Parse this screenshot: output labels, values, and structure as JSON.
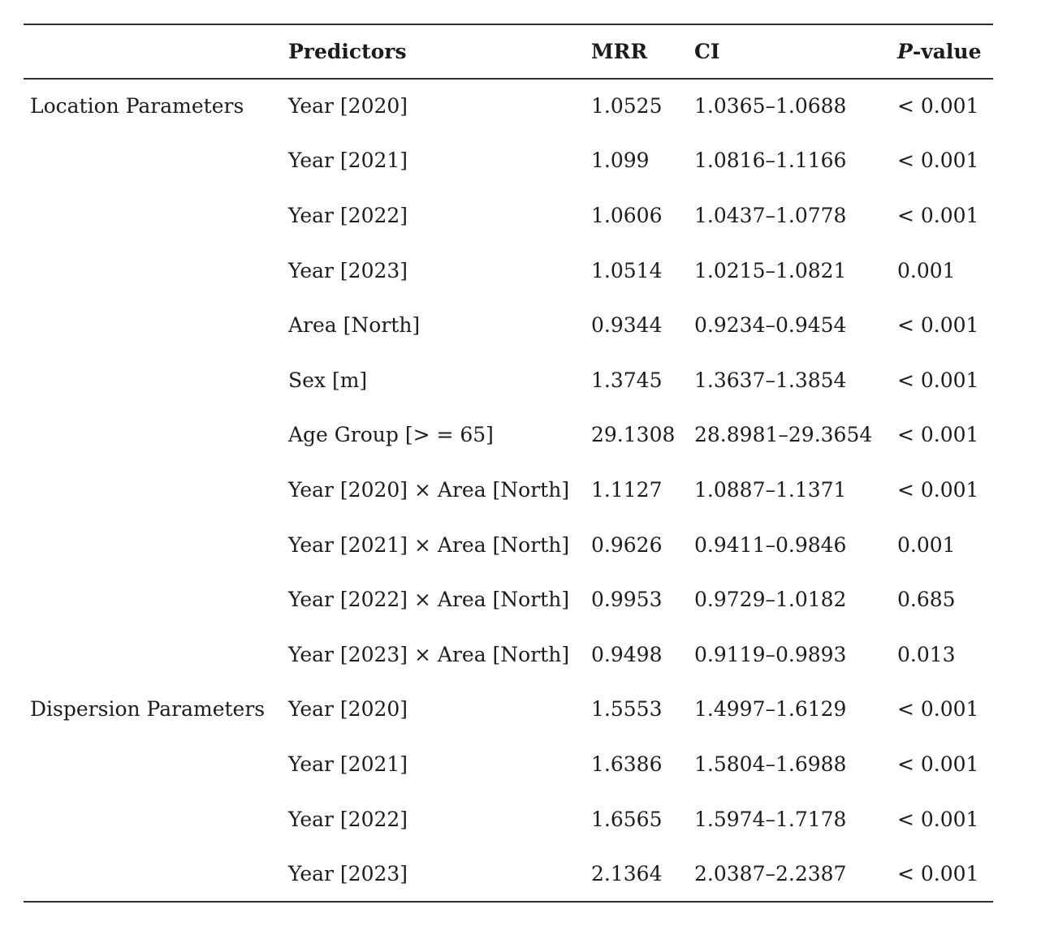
{
  "page": {
    "background": "#ffffff",
    "text_color": "#1c1c1c",
    "rule_color": "#2f2f2f"
  },
  "table": {
    "header": {
      "group": "",
      "predictors": "Predictors",
      "mrr": "MRR",
      "ci": "CI",
      "p_italic": "P",
      "p_rest": "-value"
    },
    "rows": [
      {
        "group": "Location Parameters",
        "predictor": "Year [2020]",
        "mrr": "1.0525",
        "ci": "1.0365–1.0688",
        "p": "< 0.001"
      },
      {
        "group": "",
        "predictor": "Year [2021]",
        "mrr": "1.099",
        "ci": "1.0816–1.1166",
        "p": "< 0.001"
      },
      {
        "group": "",
        "predictor": "Year [2022]",
        "mrr": "1.0606",
        "ci": "1.0437–1.0778",
        "p": "< 0.001"
      },
      {
        "group": "",
        "predictor": "Year [2023]",
        "mrr": "1.0514",
        "ci": "1.0215–1.0821",
        "p": "0.001"
      },
      {
        "group": "",
        "predictor": "Area [North]",
        "mrr": "0.9344",
        "ci": "0.9234–0.9454",
        "p": "< 0.001"
      },
      {
        "group": "",
        "predictor": "Sex [m]",
        "mrr": "1.3745",
        "ci": "1.3637–1.3854",
        "p": "< 0.001"
      },
      {
        "group": "",
        "predictor": "Age Group [> = 65]",
        "mrr": "29.1308",
        "ci": "28.8981–29.3654",
        "p": "< 0.001"
      },
      {
        "group": "",
        "predictor": "Year [2020] × Area [North]",
        "mrr": "1.1127",
        "ci": "1.0887–1.1371",
        "p": "< 0.001"
      },
      {
        "group": "",
        "predictor": "Year [2021] × Area [North]",
        "mrr": "0.9626",
        "ci": "0.9411–0.9846",
        "p": "0.001"
      },
      {
        "group": "",
        "predictor": "Year [2022] × Area [North]",
        "mrr": "0.9953",
        "ci": "0.9729–1.0182",
        "p": "0.685"
      },
      {
        "group": "",
        "predictor": "Year [2023] × Area [North]",
        "mrr": "0.9498",
        "ci": "0.9119–0.9893",
        "p": "0.013"
      },
      {
        "group": "Dispersion Parameters",
        "predictor": "Year [2020]",
        "mrr": "1.5553",
        "ci": "1.4997–1.6129",
        "p": "< 0.001"
      },
      {
        "group": "",
        "predictor": "Year [2021]",
        "mrr": "1.6386",
        "ci": "1.5804–1.6988",
        "p": "< 0.001"
      },
      {
        "group": "",
        "predictor": "Year [2022]",
        "mrr": "1.6565",
        "ci": "1.5974–1.7178",
        "p": "< 0.001"
      },
      {
        "group": "",
        "predictor": "Year [2023]",
        "mrr": "2.1364",
        "ci": "2.0387–2.2387",
        "p": "< 0.001"
      }
    ]
  }
}
